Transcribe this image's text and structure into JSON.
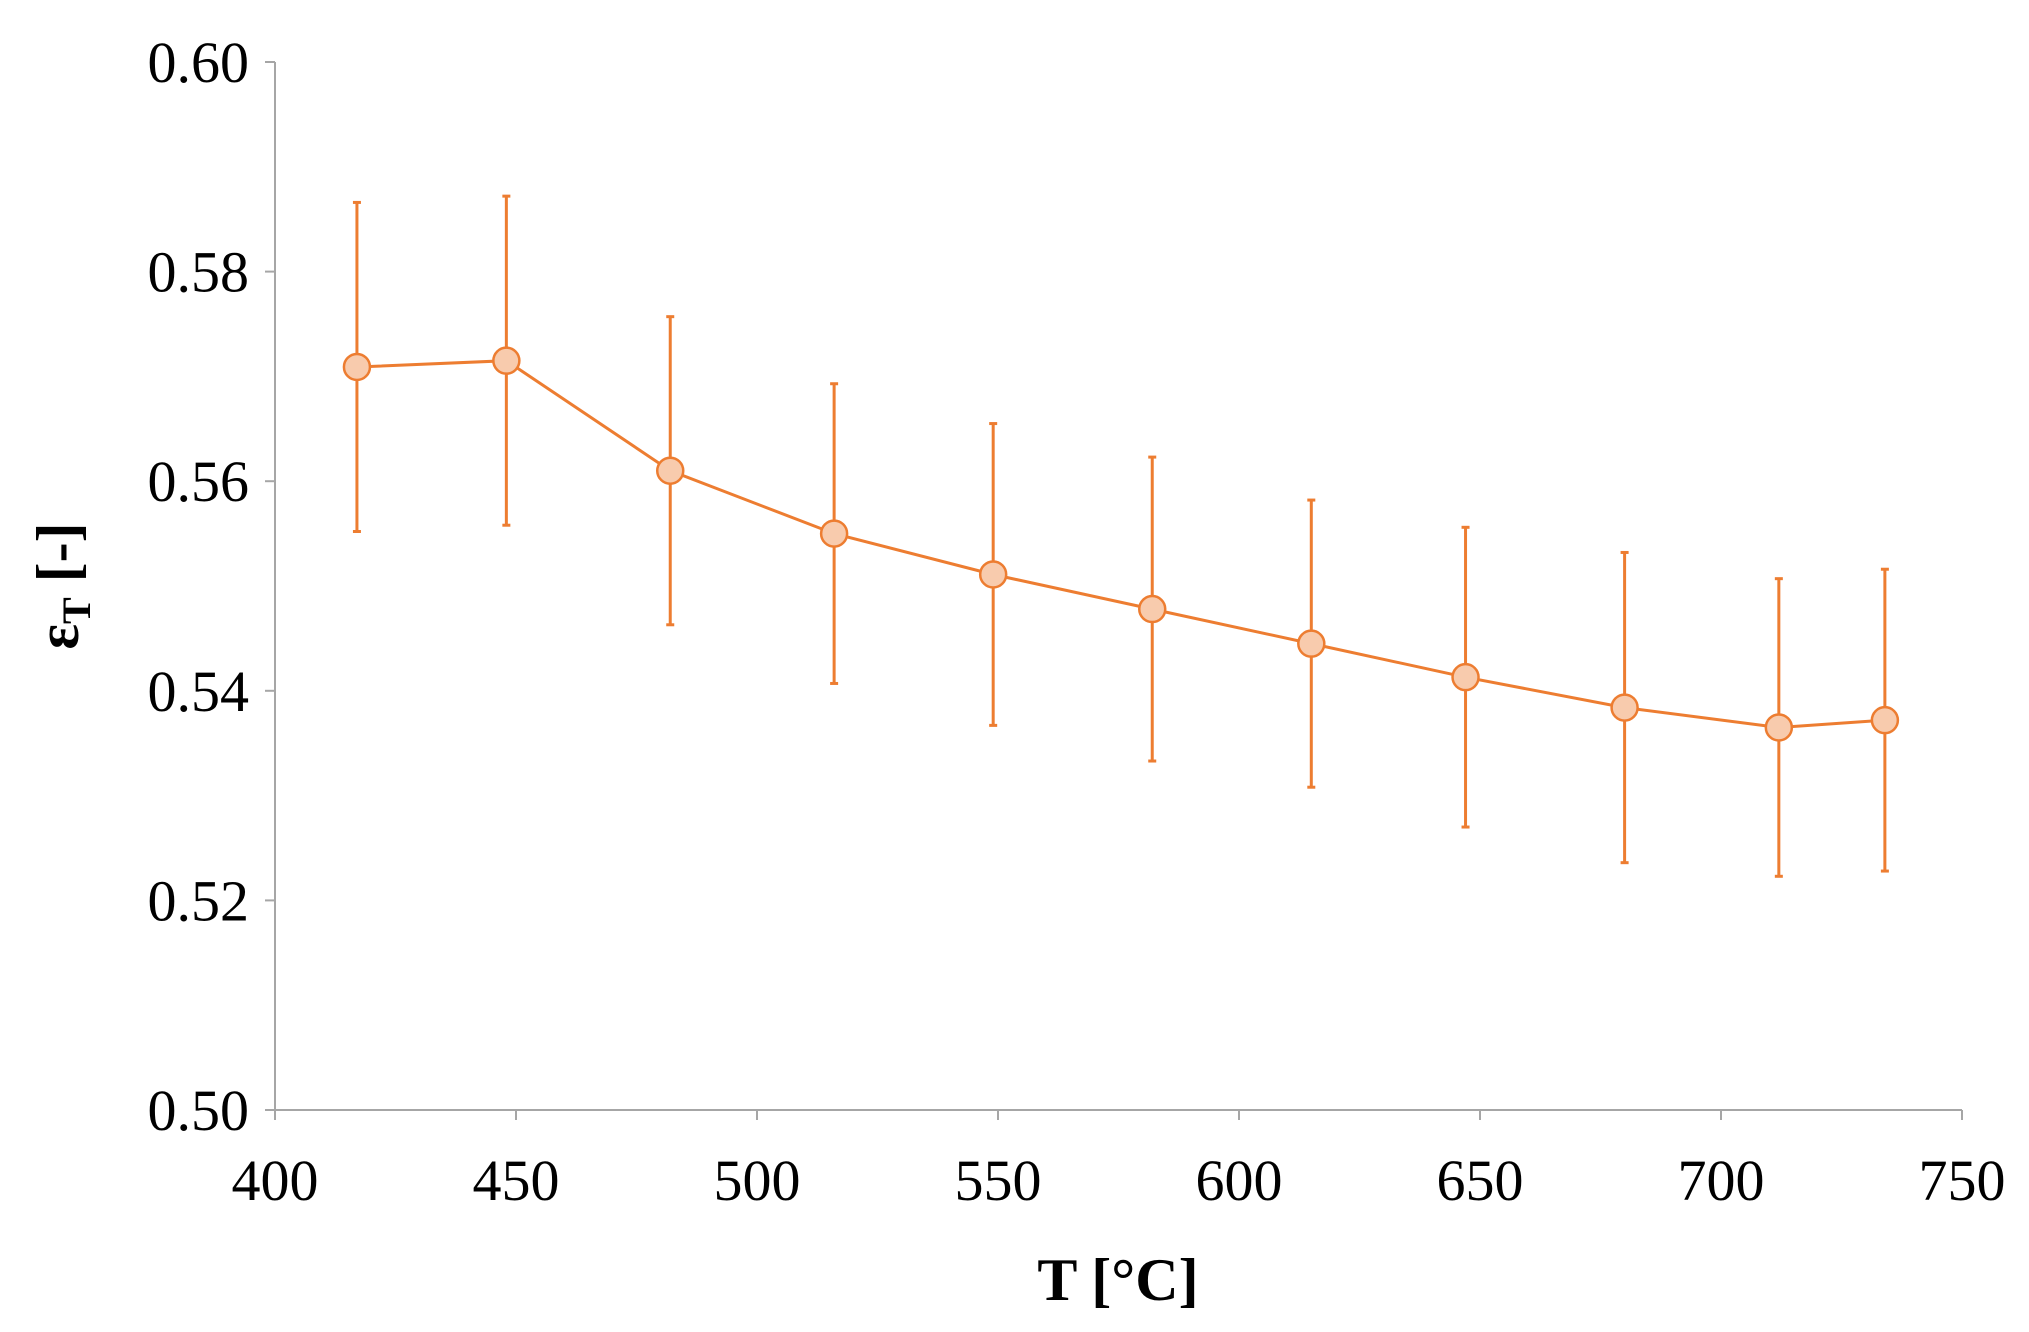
{
  "chart_data": {
    "type": "line",
    "title": "",
    "xlabel": "T [°C]",
    "ylabel_main": "ε",
    "ylabel_sub": "T",
    "ylabel_rest": " [-]",
    "xlim": [
      400,
      750
    ],
    "ylim": [
      0.5,
      0.6
    ],
    "x_ticks": [
      400,
      450,
      500,
      550,
      600,
      650,
      700,
      750
    ],
    "x_tick_labels": [
      "400",
      "450",
      "500",
      "550",
      "600",
      "650",
      "700",
      "750"
    ],
    "y_ticks": [
      0.5,
      0.52,
      0.54,
      0.56,
      0.58,
      0.6
    ],
    "y_tick_labels": [
      "0.50",
      "0.52",
      "0.54",
      "0.56",
      "0.58",
      "0.60"
    ],
    "grid": false,
    "legend": "none",
    "series": [
      {
        "x": [
          417,
          448,
          482,
          516,
          549,
          582,
          615,
          647,
          680,
          712,
          734
        ],
        "y": [
          0.5709,
          0.5715,
          0.561,
          0.555,
          0.5511,
          0.5478,
          0.5445,
          0.5413,
          0.5384,
          0.5365,
          0.5372
        ],
        "error": [
          0.0157,
          0.0157,
          0.0147,
          0.0143,
          0.0144,
          0.0145,
          0.0137,
          0.0143,
          0.0148,
          0.0142,
          0.0144
        ],
        "line_color": "#ed7d31",
        "marker_fill": "#f8cbad",
        "marker_edge": "#ed7d31"
      }
    ]
  }
}
